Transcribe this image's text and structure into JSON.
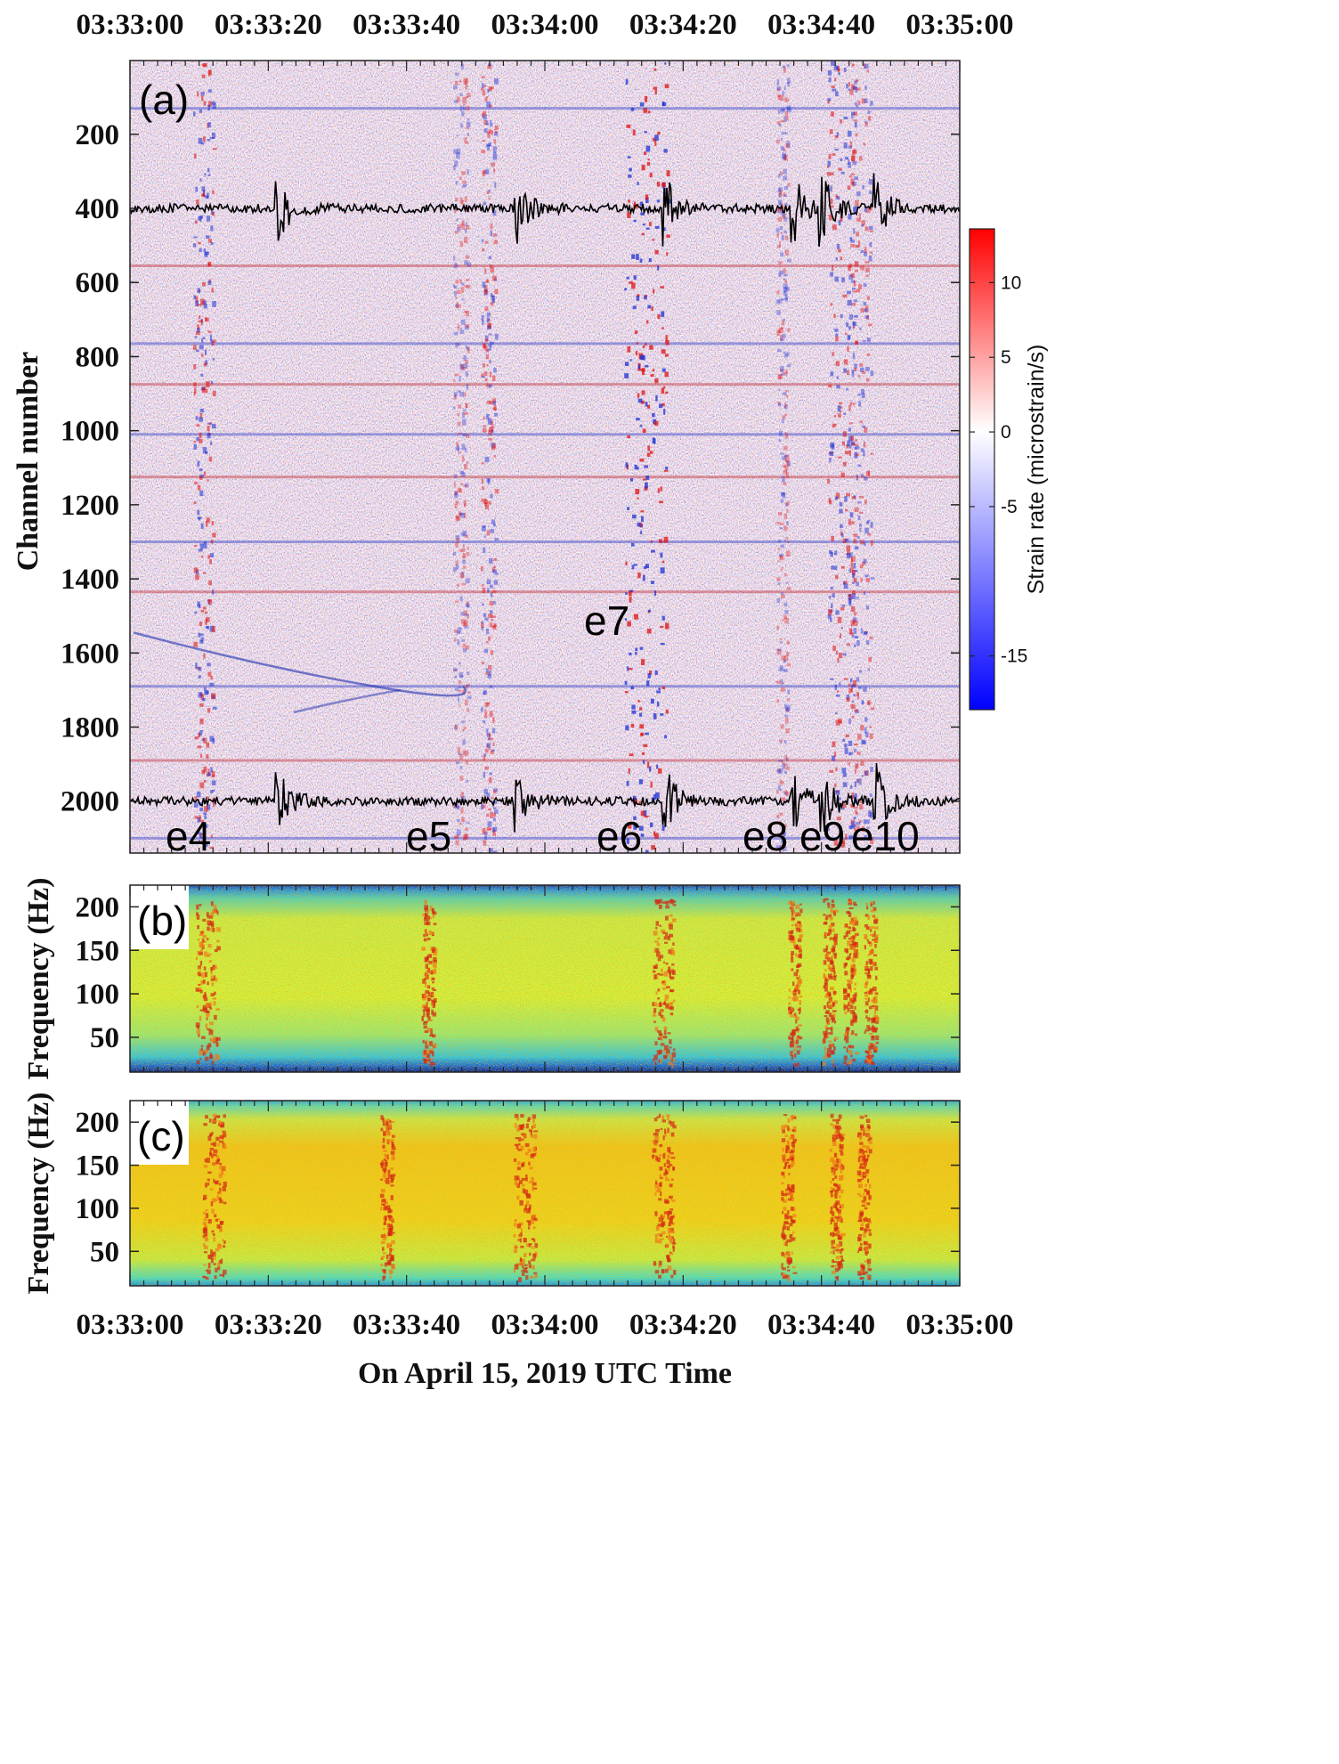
{
  "chart_data": [
    {
      "panel": "(a)",
      "type": "heatmap",
      "ylabel": "Channel number",
      "y_ticks": [
        "200",
        "400",
        "600",
        "800",
        "1000",
        "1200",
        "1400",
        "1600",
        "1800",
        "2000"
      ],
      "ylim": [
        1,
        2140
      ],
      "x_ticks_top": [
        "03:33:00",
        "03:33:20",
        "03:33:40",
        "03:34:00",
        "03:34:20",
        "03:34:40",
        "03:35:00"
      ],
      "colorbar": {
        "label": "Strain rate (microstrain/s)",
        "ticks": [
          "10",
          "5",
          "0",
          "-5",
          "-15"
        ],
        "colormap": "blue-white-red"
      },
      "events": [
        {
          "label": "e4",
          "arrival_s": 21.5
        },
        {
          "label": "e5",
          "arrival_s": 56
        },
        {
          "label": "e6",
          "arrival_s": 77.5
        },
        {
          "label": "e7",
          "arrival_s": 74
        },
        {
          "label": "e8",
          "arrival_s": 96
        },
        {
          "label": "e9",
          "arrival_s": 100
        },
        {
          "label": "e10",
          "arrival_s": 108
        }
      ],
      "overlay_traces": [
        {
          "channel": 400,
          "color": "#000000"
        },
        {
          "channel": 2000,
          "color": "#000000"
        }
      ]
    },
    {
      "panel": "(b)",
      "type": "heatmap",
      "ylabel": "Frequency (Hz)",
      "y_ticks": [
        "50",
        "100",
        "150",
        "200"
      ],
      "ylim": [
        10,
        225
      ],
      "colormap": "jet",
      "energy_bursts_s": [
        11,
        43,
        77,
        96,
        101,
        104,
        107
      ]
    },
    {
      "panel": "(c)",
      "type": "heatmap",
      "ylabel": "Frequency (Hz)",
      "y_ticks": [
        "50",
        "100",
        "150",
        "200"
      ],
      "ylim": [
        10,
        225
      ],
      "colormap": "jet",
      "energy_bursts_s": [
        12,
        37,
        57,
        77,
        95,
        102,
        106
      ]
    }
  ],
  "x_ticks_bottom": [
    "03:33:00",
    "03:33:20",
    "03:33:40",
    "03:34:00",
    "03:34:20",
    "03:34:40",
    "03:35:00"
  ],
  "xlabel": "On April 15, 2019 UTC Time",
  "xlim_seconds": [
    0,
    120
  ]
}
